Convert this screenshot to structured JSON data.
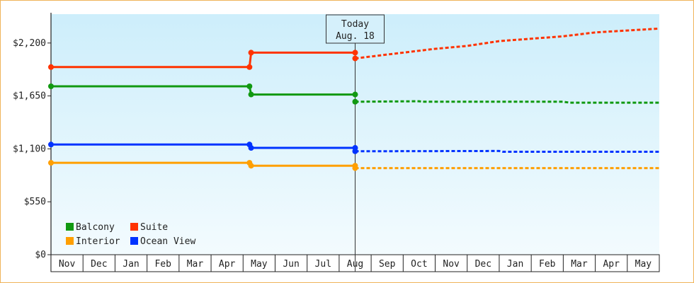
{
  "chart_data": {
    "type": "line",
    "title": "",
    "xlabel": "",
    "ylabel": "",
    "ylim": [
      0,
      2500
    ],
    "y_ticks": [
      0,
      550,
      1100,
      1650,
      2200
    ],
    "y_tick_labels": [
      "$0",
      "$550",
      "$1,100",
      "$1,650",
      "$2,200"
    ],
    "categories": [
      "Nov",
      "Dec",
      "Jan",
      "Feb",
      "Mar",
      "Apr",
      "May",
      "Jun",
      "Jul",
      "Aug",
      "Sep",
      "Oct",
      "Nov",
      "Dec",
      "Jan",
      "Feb",
      "Mar",
      "Apr",
      "May"
    ],
    "x_range": [
      0,
      19
    ],
    "today": {
      "x": 9.5,
      "line1": "Today",
      "line2": "Aug. 18"
    },
    "grid": false,
    "legend_position": "bottom-left",
    "series": [
      {
        "name": "Balcony",
        "color": "#119911",
        "points": [
          [
            0,
            1750
          ],
          [
            6.2,
            1750
          ],
          [
            6.25,
            1665
          ],
          [
            9.5,
            1665
          ]
        ],
        "markers": [
          [
            0,
            1750
          ],
          [
            6.2,
            1750
          ],
          [
            6.25,
            1665
          ],
          [
            9.5,
            1665
          ],
          [
            9.5,
            1590
          ]
        ],
        "forecast": [
          [
            9.5,
            1590
          ],
          [
            11.5,
            1595
          ],
          [
            11.6,
            1590
          ],
          [
            16.0,
            1590
          ],
          [
            16.2,
            1580
          ],
          [
            19,
            1580
          ]
        ]
      },
      {
        "name": "Suite",
        "color": "#ff3300",
        "points": [
          [
            0,
            1950
          ],
          [
            6.2,
            1950
          ],
          [
            6.25,
            2100
          ],
          [
            9.5,
            2100
          ]
        ],
        "markers": [
          [
            0,
            1950
          ],
          [
            6.2,
            1950
          ],
          [
            6.25,
            2100
          ],
          [
            9.5,
            2100
          ],
          [
            9.5,
            2040
          ]
        ],
        "forecast": [
          [
            9.5,
            2040
          ],
          [
            10.5,
            2080
          ],
          [
            12.0,
            2140
          ],
          [
            13.0,
            2170
          ],
          [
            14.0,
            2220
          ],
          [
            16.0,
            2270
          ],
          [
            17.0,
            2310
          ],
          [
            19,
            2350
          ]
        ]
      },
      {
        "name": "Interior",
        "color": "#ff9f00",
        "points": [
          [
            0,
            955
          ],
          [
            6.2,
            955
          ],
          [
            6.25,
            925
          ],
          [
            9.5,
            925
          ]
        ],
        "markers": [
          [
            0,
            955
          ],
          [
            6.2,
            955
          ],
          [
            6.25,
            925
          ],
          [
            9.5,
            925
          ],
          [
            9.5,
            900
          ]
        ],
        "forecast": [
          [
            9.5,
            900
          ],
          [
            19,
            900
          ]
        ]
      },
      {
        "name": "Ocean View",
        "color": "#0033ff",
        "points": [
          [
            0,
            1145
          ],
          [
            6.2,
            1145
          ],
          [
            6.25,
            1110
          ],
          [
            9.5,
            1110
          ]
        ],
        "markers": [
          [
            0,
            1145
          ],
          [
            6.2,
            1145
          ],
          [
            6.25,
            1110
          ],
          [
            9.5,
            1110
          ],
          [
            9.5,
            1075
          ]
        ],
        "forecast": [
          [
            9.5,
            1075
          ],
          [
            14.0,
            1078
          ],
          [
            14.1,
            1070
          ],
          [
            19,
            1070
          ]
        ]
      }
    ]
  }
}
